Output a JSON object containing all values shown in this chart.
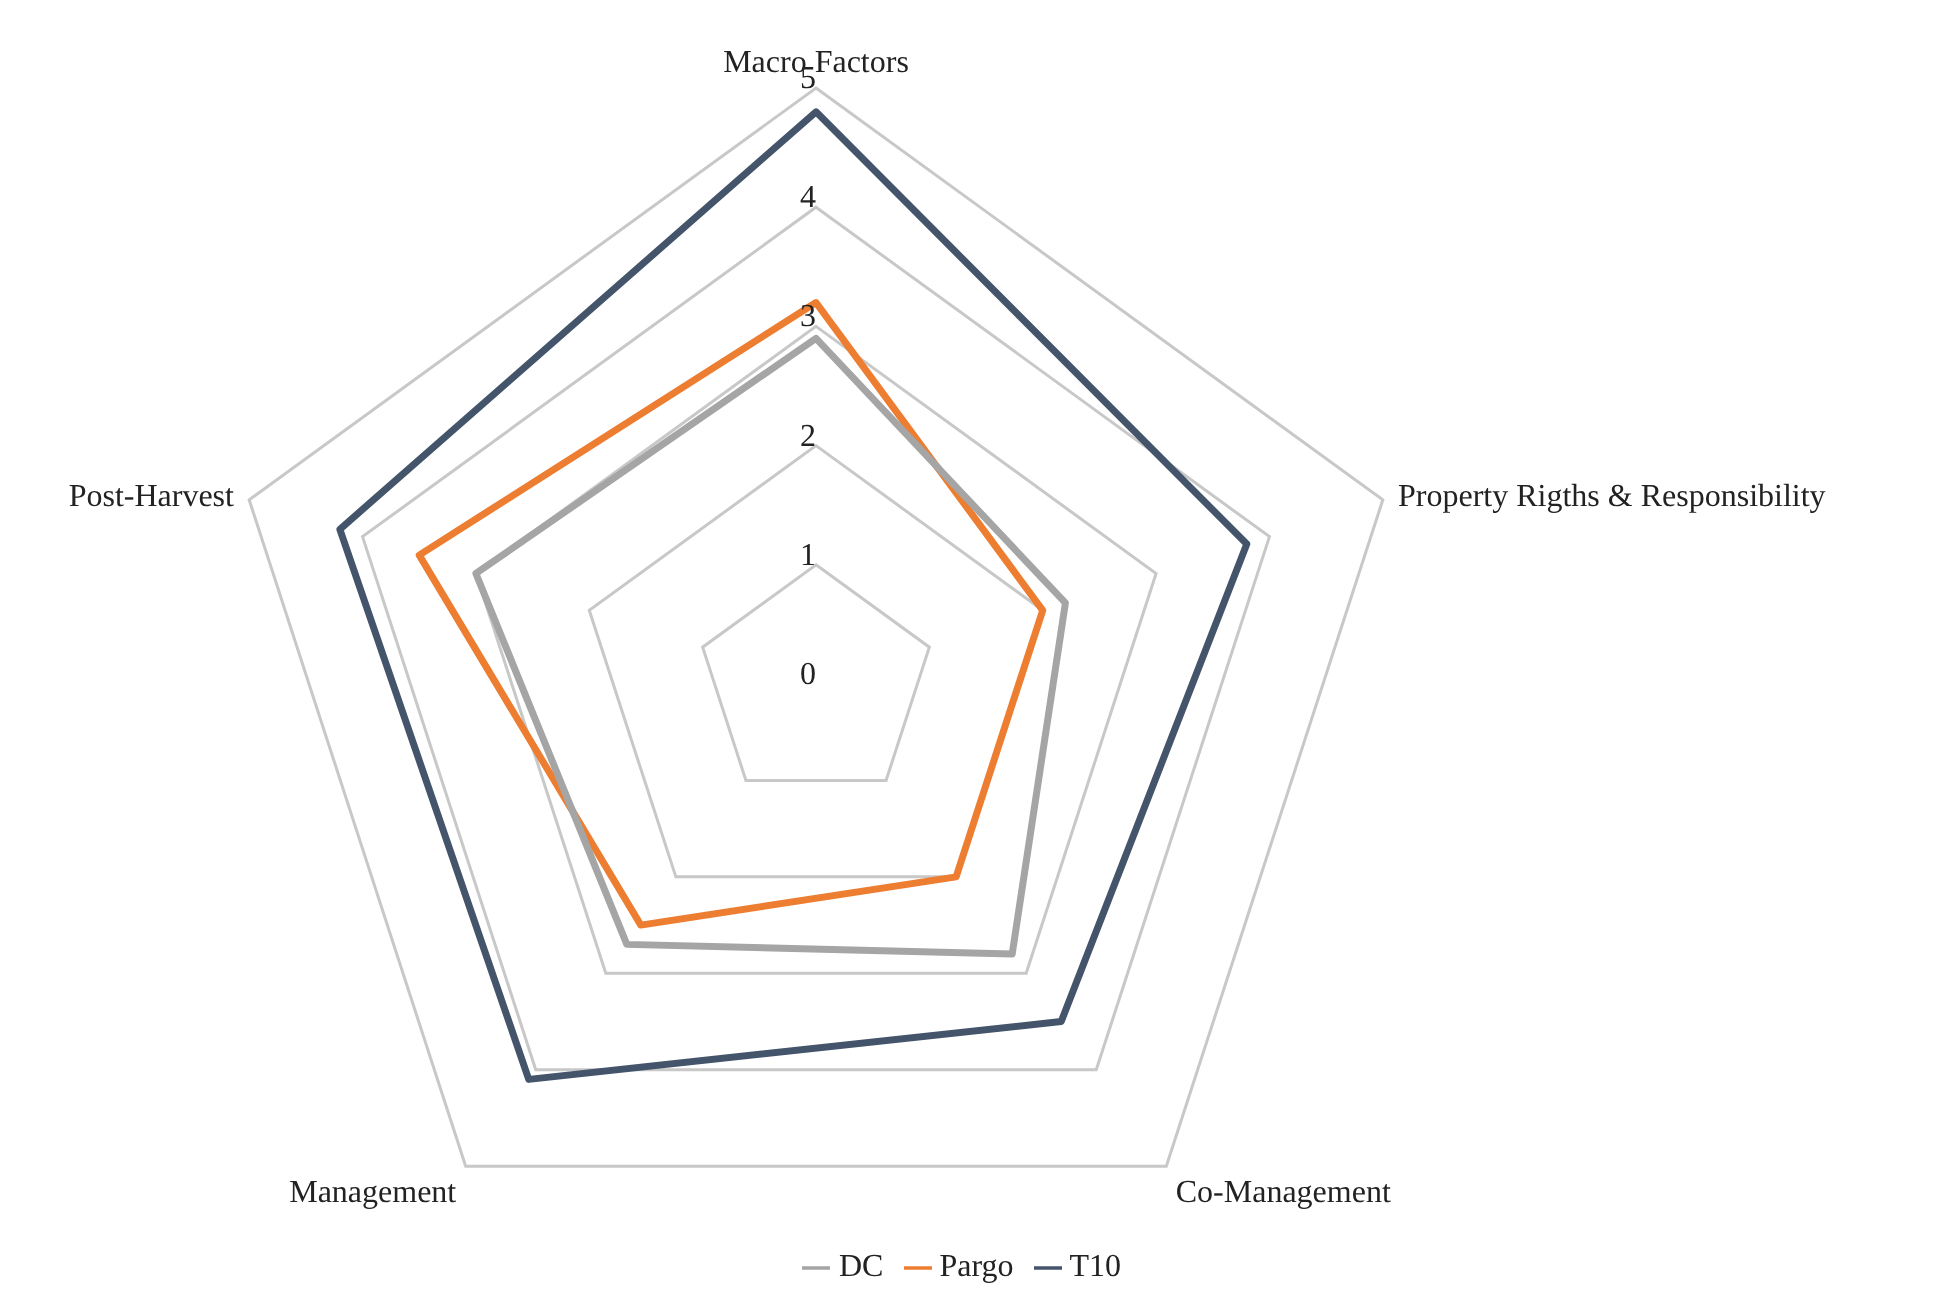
{
  "chart_data": {
    "type": "radar",
    "categories": [
      "Macro Factors",
      "Property Rigths & Responsibility",
      "Co-Management",
      "Management",
      "Post-Harvest"
    ],
    "series": [
      {
        "name": "Pargo",
        "color": "#ed7d31",
        "values": [
          3.2,
          2.0,
          2.0,
          2.5,
          3.5
        ]
      },
      {
        "name": "T10",
        "color": "#44546a",
        "values": [
          4.8,
          3.8,
          3.5,
          4.1,
          4.2
        ]
      },
      {
        "name": "DC",
        "color": "#a5a5a5",
        "values": [
          2.9,
          2.2,
          2.8,
          2.7,
          3.0
        ]
      }
    ],
    "ylim": [
      0,
      5
    ],
    "yticks": [
      0,
      1,
      2,
      3,
      4,
      5
    ],
    "grid": true,
    "legend": "bottom",
    "marker": "none",
    "line_style": "solid"
  }
}
